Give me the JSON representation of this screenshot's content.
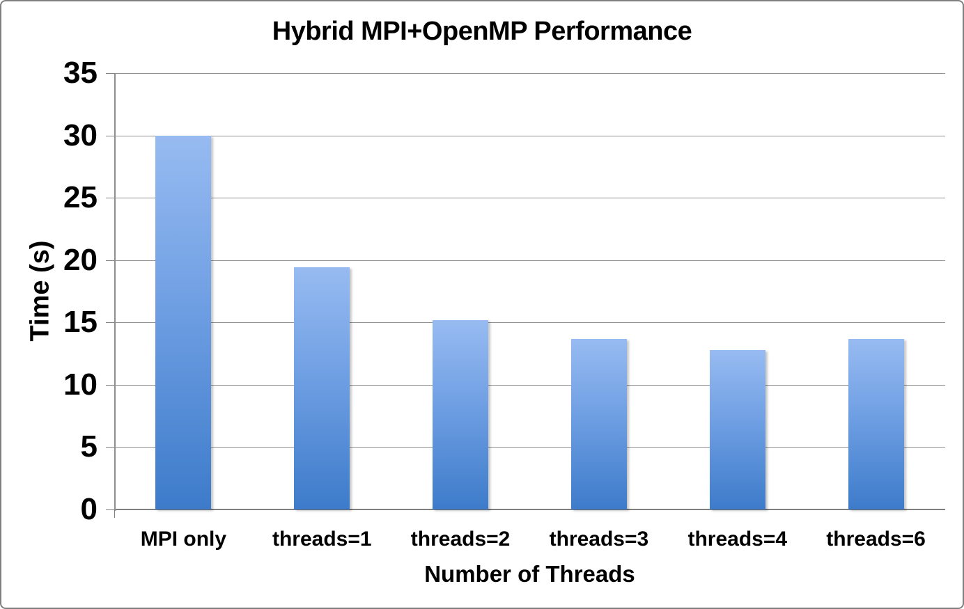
{
  "chart_data": {
    "type": "bar",
    "title": "Hybrid MPI+OpenMP Performance",
    "xlabel": "Number of Threads",
    "ylabel": "Time (s)",
    "categories": [
      "MPI only",
      "threads=1",
      "threads=2",
      "threads=3",
      "threads=4",
      "threads=6"
    ],
    "values": [
      30,
      19.4,
      15.2,
      13.7,
      12.8,
      13.7
    ],
    "ylim": [
      0,
      35
    ],
    "ytick_step": 5,
    "ytick_labels": [
      "0",
      "5",
      "10",
      "15",
      "20",
      "25",
      "30",
      "35"
    ],
    "grid": true,
    "legend_position": "none",
    "colors": {
      "bar_gradient_top": "#97BBF1",
      "bar_gradient_bottom": "#3D7BCA",
      "gridline": "#8F8F8F",
      "axis": "#7F7F7F",
      "text": "#000000",
      "background": "#FFFFFF",
      "border": "#7F7F7F"
    }
  }
}
